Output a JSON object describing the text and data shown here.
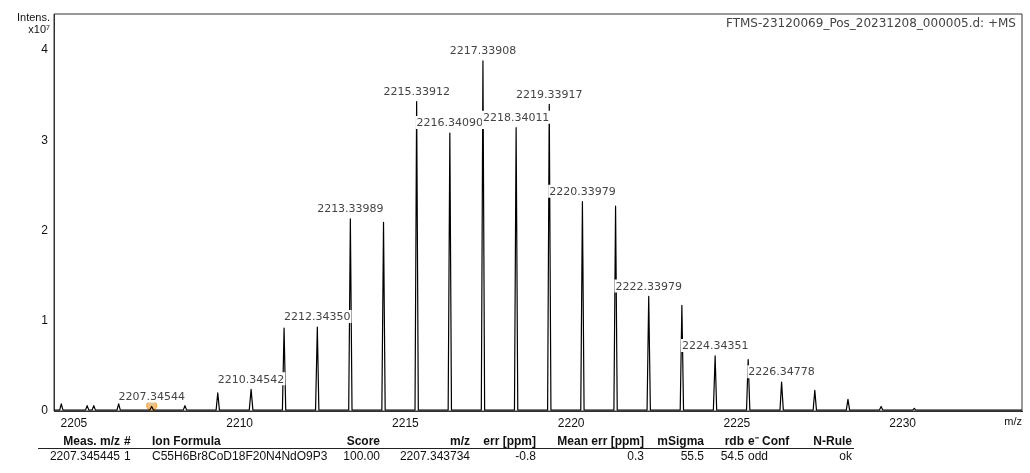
{
  "chart_data": {
    "type": "line",
    "title": "FTMS-23120069_Pos_20231208_000005.d: +MS",
    "xlabel": "m/z",
    "ylabel": "Intens. x10⁷",
    "xlim": [
      2204.4,
      2233.6
    ],
    "xticks": [
      2205,
      2210,
      2215,
      2220,
      2225,
      2230
    ],
    "ylim": [
      0,
      4.4
    ],
    "yticks": [
      0,
      1,
      2,
      3,
      4
    ],
    "grid": false,
    "legend": false,
    "series": [
      {
        "type": "line",
        "color": "#000000",
        "x": [
          2204.4,
          2204.57,
          2204.62,
          2204.67,
          2205.35,
          2205.4,
          2205.45,
          2205.55,
          2205.6,
          2205.65,
          2206.3,
          2206.35,
          2206.4,
          2207.29,
          2207.34544,
          2207.4,
          2208.3,
          2208.35,
          2208.4,
          2209.29,
          2209.34,
          2209.39,
          2210.29,
          2210.34542,
          2210.4,
          2211.29,
          2211.34,
          2211.39,
          2212.29,
          2212.3435,
          2212.39,
          2213.29,
          2213.33989,
          2213.39,
          2214.29,
          2214.34,
          2214.39,
          2215.29,
          2215.33912,
          2215.39,
          2216.29,
          2216.3409,
          2216.39,
          2217.29,
          2217.33908,
          2217.39,
          2218.29,
          2218.34011,
          2218.39,
          2219.29,
          2219.33917,
          2219.39,
          2220.29,
          2220.33979,
          2220.39,
          2221.29,
          2221.34,
          2221.39,
          2222.29,
          2222.33979,
          2222.39,
          2223.29,
          2223.34,
          2223.39,
          2224.29,
          2224.34351,
          2224.39,
          2225.29,
          2225.34,
          2225.39,
          2226.3,
          2226.34778,
          2226.4,
          2227.3,
          2227.35,
          2227.4,
          2228.3,
          2228.35,
          2228.4,
          2229.3,
          2229.35,
          2229.4,
          2230.3,
          2230.35,
          2230.4,
          2233.6
        ],
        "values": [
          0.01,
          0.01,
          0.08,
          0.01,
          0.01,
          0.06,
          0.01,
          0.01,
          0.06,
          0.01,
          0.01,
          0.08,
          0.01,
          0.01,
          0.05,
          0.01,
          0.01,
          0.06,
          0.01,
          0.01,
          0.2,
          0.01,
          0.01,
          0.24,
          0.01,
          0.01,
          0.92,
          0.01,
          0.01,
          0.93,
          0.01,
          0.01,
          2.13,
          0.01,
          0.01,
          2.09,
          0.01,
          0.01,
          3.43,
          0.01,
          0.01,
          3.08,
          0.01,
          0.01,
          3.88,
          0.01,
          0.01,
          3.14,
          0.01,
          0.01,
          3.4,
          0.01,
          0.01,
          2.32,
          0.01,
          0.01,
          2.27,
          0.01,
          0.01,
          1.27,
          0.01,
          0.01,
          1.17,
          0.01,
          0.01,
          0.61,
          0.01,
          0.01,
          0.57,
          0.01,
          0.01,
          0.32,
          0.01,
          0.01,
          0.23,
          0.01,
          0.01,
          0.13,
          0.01,
          0.01,
          0.05,
          0.01,
          0.01,
          0.03,
          0.01,
          0.01
        ]
      },
      {
        "type": "scatter",
        "color": "#f0a030",
        "marker": "circle",
        "x": [
          2207.34544
        ],
        "values": [
          0.06
        ]
      }
    ],
    "annotations": [
      {
        "text": "2207.34544",
        "x": 2207.34544,
        "y": 0.05
      },
      {
        "text": "2210.34542",
        "x": 2210.34542,
        "y": 0.24
      },
      {
        "text": "2212.34350",
        "x": 2212.3435,
        "y": 0.93
      },
      {
        "text": "2213.33989",
        "x": 2213.33989,
        "y": 2.13
      },
      {
        "text": "2215.33912",
        "x": 2215.33912,
        "y": 3.43
      },
      {
        "text": "2216.34090",
        "x": 2216.3409,
        "y": 3.08
      },
      {
        "text": "2217.33908",
        "x": 2217.33908,
        "y": 3.88
      },
      {
        "text": "2218.34011",
        "x": 2218.34011,
        "y": 3.14
      },
      {
        "text": "2219.33917",
        "x": 2219.33917,
        "y": 3.4
      },
      {
        "text": "2220.33979",
        "x": 2220.33979,
        "y": 2.32
      },
      {
        "text": "2222.33979",
        "x": 2222.33979,
        "y": 1.27
      },
      {
        "text": "2224.34351",
        "x": 2224.34351,
        "y": 0.61
      },
      {
        "text": "2226.34778",
        "x": 2226.34778,
        "y": 0.32
      },
      "Meas. m/z",
      "#",
      "Ion Formula",
      "Score",
      "m/z",
      "err [ppm]",
      "Mean err [ppm]",
      "mSigma",
      "rdb",
      "e⁻ Conf",
      "N-Rule",
      "2207.345445",
      "1",
      "C55H6Br8CoD18F20N4NdO9P3",
      "100.00",
      "2207.343734",
      "-0.8",
      "0.3",
      "55.5",
      "54.5",
      "odd",
      "ok"
    ]
  }
}
